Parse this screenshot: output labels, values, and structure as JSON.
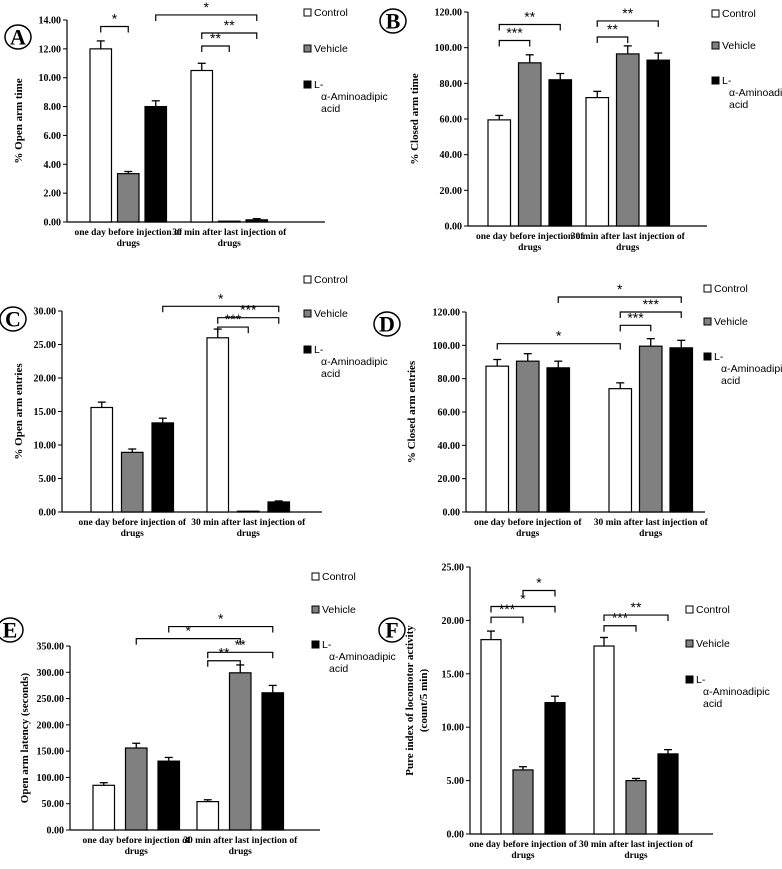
{
  "colors": {
    "control": "#ffffff",
    "vehicle": "#808080",
    "aminoadipic": "#000000",
    "axis": "#000000"
  },
  "legend": [
    "Control",
    "Vehicle",
    "L-α-Aminoadipic acid"
  ],
  "chart_data": [
    {
      "id": "A",
      "type": "bar",
      "ylabel": "% Open arm  time",
      "ylim": [
        0,
        14
      ],
      "yticks": [
        "0.00",
        "2.00",
        "4.00",
        "6.00",
        "8.00",
        "10.00",
        "12.00",
        "14.00"
      ],
      "categories": [
        "one day before injection of drugs",
        "30 min after last injection of drugs"
      ],
      "series": [
        {
          "name": "Control",
          "values": [
            12.0,
            10.5
          ],
          "errors": [
            0.55,
            0.5
          ]
        },
        {
          "name": "Vehicle",
          "values": [
            3.35,
            0.0
          ],
          "errors": [
            0.15,
            0.0
          ]
        },
        {
          "name": "L-α-Aminoadipic acid",
          "values": [
            8.0,
            0.15
          ],
          "errors": [
            0.4,
            0.08
          ]
        }
      ],
      "annotations": [
        "*",
        "**",
        "**",
        "*"
      ]
    },
    {
      "id": "B",
      "type": "bar",
      "ylabel": "% Closed arm  time",
      "ylim": [
        0,
        120
      ],
      "yticks": [
        "0.00",
        "20.00",
        "40.00",
        "60.00",
        "80.00",
        "100.00",
        "120.00"
      ],
      "categories": [
        "one day before injection of drugs",
        "30 min after last injection of drugs"
      ],
      "series": [
        {
          "name": "Control",
          "values": [
            59.5,
            72.0
          ],
          "errors": [
            2.5,
            3.5
          ]
        },
        {
          "name": "Vehicle",
          "values": [
            91.5,
            96.5
          ],
          "errors": [
            4.5,
            4.5
          ]
        },
        {
          "name": "L-α-Aminoadipic acid",
          "values": [
            82.0,
            93.0
          ],
          "errors": [
            3.5,
            4.0
          ]
        }
      ],
      "annotations": [
        "***",
        "**",
        "**",
        "**"
      ]
    },
    {
      "id": "C",
      "type": "bar",
      "ylabel": "% Open arm  entries",
      "ylim": [
        0,
        30
      ],
      "yticks": [
        "0.00",
        "5.00",
        "10.00",
        "15.00",
        "20.00",
        "25.00",
        "30.00"
      ],
      "categories": [
        "one day before injection of drugs",
        "30 min after last injection of drugs"
      ],
      "series": [
        {
          "name": "Control",
          "values": [
            15.6,
            26.0
          ],
          "errors": [
            0.8,
            1.3
          ]
        },
        {
          "name": "Vehicle",
          "values": [
            8.9,
            0.0
          ],
          "errors": [
            0.5,
            0.0
          ]
        },
        {
          "name": "L-α-Aminoadipic acid",
          "values": [
            13.3,
            1.5
          ],
          "errors": [
            0.7,
            0.15
          ]
        }
      ],
      "annotations": [
        "***",
        "***",
        "*"
      ]
    },
    {
      "id": "D",
      "type": "bar",
      "ylabel": "% Closed arm  entries",
      "ylim": [
        0,
        120
      ],
      "yticks": [
        "0.00",
        "20.00",
        "40.00",
        "60.00",
        "80.00",
        "100.00",
        "120.00"
      ],
      "categories": [
        "one day before injection of drugs",
        "30 min after last injection of drugs"
      ],
      "series": [
        {
          "name": "Control",
          "values": [
            87.5,
            74.0
          ],
          "errors": [
            4.0,
            3.5
          ]
        },
        {
          "name": "Vehicle",
          "values": [
            90.5,
            99.5
          ],
          "errors": [
            4.5,
            4.5
          ]
        },
        {
          "name": "L-α-Aminoadipic acid",
          "values": [
            86.5,
            98.5
          ],
          "errors": [
            4.0,
            4.5
          ]
        }
      ],
      "annotations": [
        "*",
        "***",
        "***",
        "*"
      ]
    },
    {
      "id": "E",
      "type": "bar",
      "ylabel": "Open arm latency (seconds)",
      "ylim": [
        0,
        350
      ],
      "yticks": [
        "0.00",
        "50.00",
        "100.00",
        "150.00",
        "200.00",
        "250.00",
        "300.00",
        "350.00"
      ],
      "categories": [
        "one day before injection of drugs",
        "30 min after last injection of drugs"
      ],
      "series": [
        {
          "name": "Control",
          "values": [
            85.0,
            54.0
          ],
          "errors": [
            5.0,
            3.5
          ]
        },
        {
          "name": "Vehicle",
          "values": [
            156.0,
            299.0
          ],
          "errors": [
            9.0,
            15.0
          ]
        },
        {
          "name": "L-α-Aminoadipic acid",
          "values": [
            131.0,
            261.0
          ],
          "errors": [
            7.0,
            14.0
          ]
        }
      ],
      "annotations": [
        "**",
        "**",
        "*",
        "*"
      ]
    },
    {
      "id": "F",
      "type": "bar",
      "ylabel": "Pure index of locomotor  activity (count/5 min)",
      "ylim": [
        0,
        25
      ],
      "yticks": [
        "0.00",
        "5.00",
        "10.00",
        "15.00",
        "20.00",
        "25.00"
      ],
      "categories": [
        "one day before injection of drugs",
        "30 min after last injection of drugs"
      ],
      "series": [
        {
          "name": "Control",
          "values": [
            18.2,
            17.6
          ],
          "errors": [
            0.8,
            0.8
          ]
        },
        {
          "name": "Vehicle",
          "values": [
            6.0,
            5.0
          ],
          "errors": [
            0.3,
            0.2
          ]
        },
        {
          "name": "L-α-Aminoadipic acid",
          "values": [
            12.3,
            7.5
          ],
          "errors": [
            0.6,
            0.4
          ]
        }
      ],
      "annotations": [
        "***",
        "*",
        "*",
        "***",
        "**"
      ]
    }
  ]
}
